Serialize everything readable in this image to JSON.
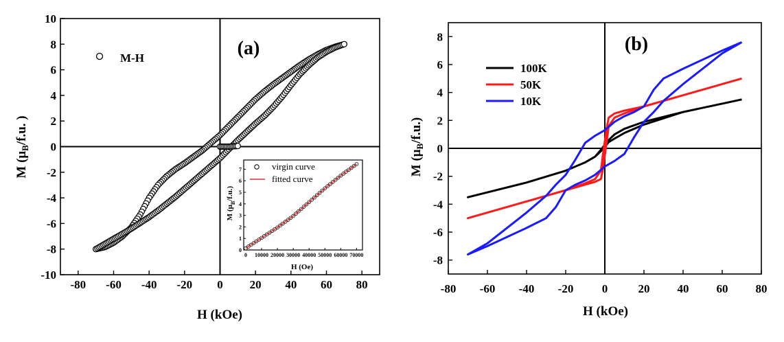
{
  "chart_data": [
    {
      "id": "a",
      "type": "scatter",
      "panel_label": "(a)",
      "xlabel": "H (kOe)",
      "ylabel": "M (μB/f.u. )",
      "ylabel_parts": {
        "pre": "M (μ",
        "sub": "B",
        "post": "/f.u. )"
      },
      "xlim": [
        -90,
        90
      ],
      "ylim": [
        -10,
        10
      ],
      "xticks": [
        -80,
        -60,
        -40,
        -20,
        0,
        20,
        40,
        60,
        80
      ],
      "yticks": [
        -10,
        -8,
        -6,
        -4,
        -2,
        0,
        2,
        4,
        6,
        8,
        10
      ],
      "legend": "M-H",
      "series": [
        {
          "name": "M-H",
          "marker": "open-circle",
          "descending_branch": [
            [
              70,
              8.0
            ],
            [
              65,
              7.8
            ],
            [
              60,
              7.55
            ],
            [
              55,
              7.2
            ],
            [
              50,
              6.8
            ],
            [
              45,
              6.35
            ],
            [
              40,
              5.85
            ],
            [
              35,
              5.35
            ],
            [
              30,
              4.85
            ],
            [
              25,
              4.3
            ],
            [
              20,
              3.7
            ],
            [
              15,
              3.0
            ],
            [
              10,
              2.3
            ],
            [
              5,
              1.6
            ],
            [
              0,
              0.9
            ],
            [
              -5,
              0.3
            ],
            [
              -10,
              -0.3
            ],
            [
              -15,
              -0.8
            ],
            [
              -20,
              -1.3
            ],
            [
              -25,
              -1.75
            ],
            [
              -30,
              -2.3
            ],
            [
              -35,
              -3.0
            ],
            [
              -40,
              -4.0
            ],
            [
              -45,
              -5.3
            ],
            [
              -50,
              -6.3
            ],
            [
              -55,
              -7.0
            ],
            [
              -60,
              -7.5
            ],
            [
              -65,
              -7.85
            ],
            [
              -70,
              -8.0
            ]
          ],
          "ascending_branch": [
            [
              -70,
              -8.0
            ],
            [
              -65,
              -7.6
            ],
            [
              -60,
              -7.2
            ],
            [
              -55,
              -6.8
            ],
            [
              -50,
              -6.4
            ],
            [
              -45,
              -5.95
            ],
            [
              -40,
              -5.5
            ],
            [
              -35,
              -5.0
            ],
            [
              -30,
              -4.45
            ],
            [
              -25,
              -3.9
            ],
            [
              -20,
              -3.3
            ],
            [
              -15,
              -2.7
            ],
            [
              -10,
              -2.1
            ],
            [
              -5,
              -1.5
            ],
            [
              0,
              -0.9
            ],
            [
              5,
              -0.2
            ],
            [
              10,
              0.5
            ],
            [
              15,
              1.15
            ],
            [
              20,
              1.8
            ],
            [
              25,
              2.4
            ],
            [
              30,
              3.1
            ],
            [
              35,
              3.9
            ],
            [
              40,
              4.8
            ],
            [
              45,
              5.65
            ],
            [
              50,
              6.35
            ],
            [
              55,
              6.95
            ],
            [
              60,
              7.4
            ],
            [
              65,
              7.75
            ],
            [
              70,
              8.0
            ]
          ],
          "virgin_branch": [
            [
              0,
              0
            ],
            [
              5,
              0
            ],
            [
              10,
              0.05
            ]
          ]
        }
      ],
      "inset": {
        "type": "scatter",
        "xlabel": "H (Oe)",
        "ylabel": "M (μB/f.u.)",
        "ylabel_parts": {
          "pre": "M (μ",
          "sub": "B",
          "post": "/f.u.)"
        },
        "xlim": [
          0,
          72000
        ],
        "ylim": [
          0,
          7.8
        ],
        "xticks": [
          0,
          10000,
          20000,
          30000,
          40000,
          50000,
          60000,
          70000
        ],
        "yticks": [
          0,
          1,
          2,
          3,
          4,
          5,
          6,
          7
        ],
        "series": [
          {
            "name": "virgin curve",
            "marker": "open-circle",
            "x": [
              0,
              5000,
              10000,
              15000,
              20000,
              25000,
              30000,
              35000,
              40000,
              45000,
              50000,
              55000,
              60000,
              65000,
              70000
            ],
            "y": [
              0.15,
              0.6,
              1.05,
              1.5,
              1.95,
              2.45,
              2.95,
              3.55,
              4.15,
              4.75,
              5.35,
              5.9,
              6.45,
              6.95,
              7.45
            ]
          },
          {
            "name": "fitted curve",
            "color": "#e03030",
            "x": [
              0,
              5000,
              10000,
              15000,
              20000,
              25000,
              30000,
              35000,
              40000,
              45000,
              50000,
              55000,
              60000,
              65000,
              70000
            ],
            "y": [
              0.15,
              0.6,
              1.05,
              1.5,
              1.95,
              2.45,
              2.95,
              3.55,
              4.15,
              4.75,
              5.35,
              5.9,
              6.45,
              6.95,
              7.45
            ]
          }
        ]
      }
    },
    {
      "id": "b",
      "type": "line",
      "panel_label": "(b)",
      "xlabel": "H (kOe)",
      "ylabel": "M (μB/f.u.)",
      "ylabel_parts": {
        "pre": "M (μ",
        "sub": "B",
        "post": "/f.u.)"
      },
      "xlim": [
        -80,
        80
      ],
      "ylim": [
        -9,
        9
      ],
      "xticks": [
        -80,
        -60,
        -40,
        -20,
        0,
        20,
        40,
        60,
        80
      ],
      "yticks": [
        -8,
        -6,
        -4,
        -2,
        0,
        2,
        4,
        6,
        8
      ],
      "series": [
        {
          "name": "100K",
          "color": "#000000",
          "upper": [
            [
              70,
              3.5
            ],
            [
              60,
              3.2
            ],
            [
              40,
              2.6
            ],
            [
              20,
              1.9
            ],
            [
              10,
              1.4
            ],
            [
              5,
              1.0
            ],
            [
              2,
              0.6
            ],
            [
              0,
              0.25
            ],
            [
              -2,
              -0.1
            ],
            [
              -5,
              -0.6
            ],
            [
              -10,
              -1.0
            ],
            [
              -20,
              -1.6
            ],
            [
              -40,
              -2.45
            ],
            [
              -60,
              -3.15
            ],
            [
              -70,
              -3.5
            ]
          ],
          "lower": [
            [
              -70,
              -3.5
            ],
            [
              -60,
              -3.15
            ],
            [
              -40,
              -2.45
            ],
            [
              -20,
              -1.6
            ],
            [
              -10,
              -1.0
            ],
            [
              -5,
              -0.6
            ],
            [
              -2,
              -0.2
            ],
            [
              0,
              0.1
            ],
            [
              2,
              0.45
            ],
            [
              5,
              0.7
            ],
            [
              10,
              1.1
            ],
            [
              20,
              1.7
            ],
            [
              40,
              2.6
            ],
            [
              60,
              3.2
            ],
            [
              70,
              3.5
            ]
          ]
        },
        {
          "name": "50K",
          "color": "#ff1a1a",
          "upper": [
            [
              70,
              5.0
            ],
            [
              60,
              4.6
            ],
            [
              40,
              3.8
            ],
            [
              20,
              3.0
            ],
            [
              10,
              2.7
            ],
            [
              5,
              2.5
            ],
            [
              2,
              2.2
            ],
            [
              1,
              1.5
            ],
            [
              0,
              0.5
            ],
            [
              -1,
              -0.5
            ],
            [
              -2,
              -1.6
            ],
            [
              -5,
              -2.2
            ],
            [
              -10,
              -2.5
            ],
            [
              -20,
              -3.0
            ],
            [
              -40,
              -3.8
            ],
            [
              -60,
              -4.6
            ],
            [
              -70,
              -5.0
            ]
          ],
          "lower": [
            [
              -70,
              -5.0
            ],
            [
              -60,
              -4.6
            ],
            [
              -40,
              -3.8
            ],
            [
              -20,
              -3.0
            ],
            [
              -10,
              -2.6
            ],
            [
              -5,
              -2.4
            ],
            [
              -2,
              -2.2
            ],
            [
              -1,
              -1.5
            ],
            [
              0,
              -0.5
            ],
            [
              1,
              0.5
            ],
            [
              2,
              1.6
            ],
            [
              5,
              2.2
            ],
            [
              10,
              2.5
            ],
            [
              20,
              3.0
            ],
            [
              40,
              3.8
            ],
            [
              60,
              4.6
            ],
            [
              70,
              5.0
            ]
          ]
        },
        {
          "name": "10K",
          "color": "#1a1aff",
          "upper": [
            [
              70,
              7.6
            ],
            [
              60,
              7.0
            ],
            [
              40,
              5.7
            ],
            [
              30,
              5.0
            ],
            [
              25,
              4.2
            ],
            [
              20,
              3.0
            ],
            [
              15,
              2.6
            ],
            [
              10,
              2.3
            ],
            [
              5,
              1.9
            ],
            [
              0,
              1.3
            ],
            [
              -5,
              0.9
            ],
            [
              -10,
              0.4
            ],
            [
              -15,
              -0.8
            ],
            [
              -20,
              -1.9
            ],
            [
              -25,
              -2.6
            ],
            [
              -30,
              -3.4
            ],
            [
              -40,
              -4.6
            ],
            [
              -60,
              -6.8
            ],
            [
              -70,
              -7.6
            ]
          ],
          "lower": [
            [
              -70,
              -7.6
            ],
            [
              -60,
              -7.0
            ],
            [
              -40,
              -5.7
            ],
            [
              -30,
              -5.0
            ],
            [
              -25,
              -4.2
            ],
            [
              -20,
              -3.0
            ],
            [
              -15,
              -2.6
            ],
            [
              -10,
              -2.3
            ],
            [
              -5,
              -1.9
            ],
            [
              0,
              -1.3
            ],
            [
              5,
              -0.9
            ],
            [
              10,
              -0.4
            ],
            [
              15,
              0.8
            ],
            [
              20,
              1.9
            ],
            [
              25,
              2.6
            ],
            [
              30,
              3.4
            ],
            [
              40,
              4.6
            ],
            [
              60,
              6.8
            ],
            [
              70,
              7.6
            ]
          ]
        }
      ]
    }
  ]
}
